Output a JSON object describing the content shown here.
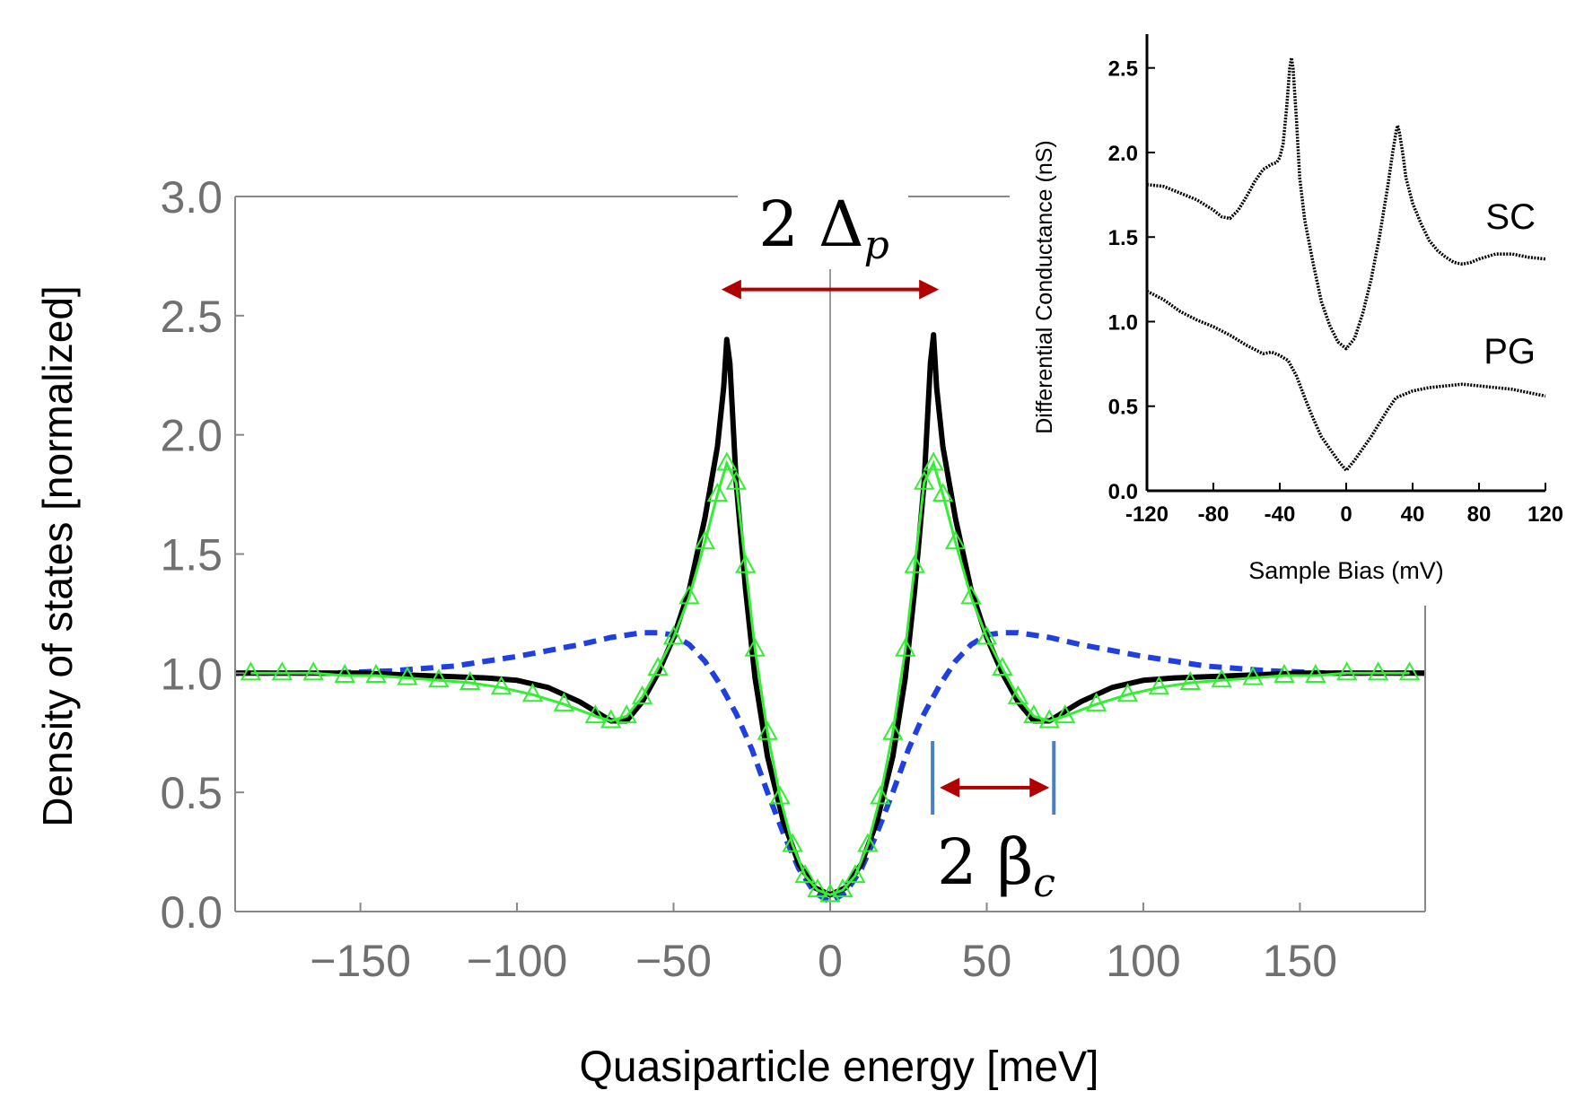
{
  "chart_data": [
    {
      "type": "line",
      "xlabel": "Quasiparticle energy [meV]",
      "ylabel": "Density of states [normalized]",
      "xlim": [
        -190,
        190
      ],
      "ylim": [
        0,
        3
      ],
      "xticks": [
        -150,
        -100,
        -50,
        0,
        50,
        100,
        150
      ],
      "xtick_labels": [
        "−150",
        "−100",
        "−50",
        "0",
        "50",
        "100",
        "150"
      ],
      "yticks": [
        0,
        0.5,
        1,
        1.5,
        2,
        2.5,
        3
      ],
      "ytick_labels": [
        "0.0",
        "0.5",
        "1.0",
        "1.5",
        "2.0",
        "2.5",
        "3.0"
      ],
      "grid": false,
      "colors": {
        "solid": "#000000",
        "dashed": "#1f3fe0",
        "triangles": "#33ee33",
        "arrows": "#b00000",
        "bars": "#4a7fc1",
        "axes": "#888888"
      },
      "series": [
        {
          "style": "solid-black",
          "x": [
            -190,
            -170,
            -150,
            -130,
            -110,
            -100,
            -90,
            -80,
            -75,
            -70,
            -65,
            -60,
            -55,
            -50,
            -45,
            -40,
            -36,
            -34,
            -33,
            -32,
            -30,
            -27,
            -24,
            -20,
            -15,
            -10,
            -5,
            0,
            5,
            10,
            15,
            20,
            24,
            27,
            30,
            32,
            33,
            34,
            36,
            40,
            45,
            50,
            55,
            60,
            65,
            70,
            75,
            80,
            90,
            100,
            110,
            130,
            150,
            170,
            190
          ],
          "y": [
            1.0,
            1.0,
            1.0,
            0.99,
            0.98,
            0.97,
            0.94,
            0.88,
            0.84,
            0.8,
            0.8,
            0.88,
            1.0,
            1.15,
            1.35,
            1.65,
            1.95,
            2.2,
            2.4,
            2.3,
            1.8,
            1.35,
            0.98,
            0.65,
            0.38,
            0.2,
            0.1,
            0.07,
            0.1,
            0.2,
            0.38,
            0.65,
            0.98,
            1.35,
            1.8,
            2.3,
            2.42,
            2.2,
            1.95,
            1.65,
            1.35,
            1.15,
            1.0,
            0.88,
            0.8,
            0.8,
            0.84,
            0.88,
            0.94,
            0.97,
            0.98,
            0.99,
            1.0,
            1.0,
            1.0
          ]
        },
        {
          "style": "dashed-blue",
          "x": [
            -190,
            -160,
            -140,
            -120,
            -100,
            -80,
            -70,
            -60,
            -55,
            -50,
            -45,
            -40,
            -35,
            -30,
            -25,
            -20,
            -15,
            -10,
            -5,
            0,
            5,
            10,
            15,
            20,
            25,
            30,
            35,
            40,
            45,
            50,
            55,
            60,
            70,
            80,
            100,
            120,
            140,
            160,
            190
          ],
          "y": [
            1.0,
            1.0,
            1.01,
            1.03,
            1.07,
            1.12,
            1.15,
            1.17,
            1.17,
            1.16,
            1.12,
            1.05,
            0.95,
            0.83,
            0.68,
            0.5,
            0.33,
            0.18,
            0.08,
            0.04,
            0.08,
            0.18,
            0.33,
            0.5,
            0.68,
            0.83,
            0.95,
            1.05,
            1.12,
            1.16,
            1.17,
            1.17,
            1.15,
            1.12,
            1.07,
            1.03,
            1.01,
            1.0,
            1.0
          ]
        },
        {
          "style": "green-triangles",
          "x": [
            -185,
            -175,
            -165,
            -155,
            -145,
            -135,
            -125,
            -115,
            -105,
            -95,
            -85,
            -75,
            -70,
            -65,
            -60,
            -55,
            -50,
            -45,
            -40,
            -36,
            -33,
            -30,
            -27,
            -24,
            -20,
            -16,
            -12,
            -8,
            -4,
            0,
            4,
            8,
            12,
            16,
            20,
            24,
            27,
            30,
            33,
            36,
            40,
            45,
            50,
            55,
            60,
            65,
            70,
            75,
            85,
            95,
            105,
            115,
            125,
            135,
            145,
            155,
            165,
            175,
            185
          ],
          "y": [
            1.0,
            1.0,
            1.0,
            0.99,
            0.99,
            0.98,
            0.97,
            0.96,
            0.94,
            0.91,
            0.87,
            0.82,
            0.8,
            0.82,
            0.9,
            1.02,
            1.15,
            1.32,
            1.55,
            1.75,
            1.88,
            1.8,
            1.45,
            1.1,
            0.75,
            0.48,
            0.28,
            0.15,
            0.09,
            0.07,
            0.09,
            0.15,
            0.28,
            0.48,
            0.75,
            1.1,
            1.45,
            1.8,
            1.88,
            1.75,
            1.55,
            1.32,
            1.15,
            1.02,
            0.9,
            0.82,
            0.8,
            0.82,
            0.87,
            0.91,
            0.94,
            0.96,
            0.97,
            0.98,
            0.99,
            0.99,
            1.0,
            1.0,
            1.0
          ]
        }
      ],
      "annotations": [
        {
          "name": "gap-arrow",
          "label": "2 Δ",
          "subscript": "p",
          "x_from": -33,
          "x_to": 33,
          "y": 2.61
        },
        {
          "name": "beta-arrow",
          "label": "2 β",
          "subscript": "c",
          "x_from": 35,
          "x_to": 70,
          "y": 0.52
        }
      ]
    },
    {
      "type": "line",
      "xlabel": "Sample Bias (mV)",
      "ylabel": "Differential Conductance (nS)",
      "xlim": [
        -120,
        120
      ],
      "ylim": [
        0,
        2.7
      ],
      "xticks": [
        -120,
        -80,
        -40,
        0,
        40,
        80,
        120
      ],
      "xtick_labels": [
        "-120",
        "-80",
        "-40",
        "0",
        "40",
        "80",
        "120"
      ],
      "yticks": [
        0,
        0.5,
        1,
        1.5,
        2,
        2.5
      ],
      "ytick_labels": [
        "0.0",
        "0.5",
        "1.0",
        "1.5",
        "2.0",
        "2.5"
      ],
      "series": [
        {
          "name": "SC",
          "x": [
            -120,
            -110,
            -100,
            -90,
            -80,
            -75,
            -70,
            -65,
            -60,
            -55,
            -50,
            -45,
            -42,
            -40,
            -38,
            -36,
            -34,
            -33,
            -32,
            -30,
            -28,
            -25,
            -20,
            -15,
            -10,
            -5,
            0,
            5,
            10,
            15,
            20,
            25,
            28,
            30,
            31,
            32,
            34,
            36,
            40,
            45,
            50,
            55,
            60,
            65,
            70,
            75,
            80,
            90,
            100,
            110,
            120
          ],
          "y": [
            1.81,
            1.8,
            1.76,
            1.72,
            1.66,
            1.62,
            1.61,
            1.66,
            1.74,
            1.83,
            1.9,
            1.93,
            1.94,
            1.97,
            2.05,
            2.25,
            2.5,
            2.56,
            2.5,
            2.2,
            1.85,
            1.6,
            1.35,
            1.12,
            0.98,
            0.88,
            0.84,
            0.9,
            1.05,
            1.25,
            1.5,
            1.8,
            2.0,
            2.12,
            2.16,
            2.12,
            2.0,
            1.85,
            1.7,
            1.58,
            1.48,
            1.42,
            1.38,
            1.35,
            1.34,
            1.35,
            1.37,
            1.4,
            1.4,
            1.38,
            1.37
          ]
        },
        {
          "name": "PG",
          "x": [
            -120,
            -110,
            -100,
            -90,
            -80,
            -70,
            -60,
            -50,
            -45,
            -40,
            -35,
            -30,
            -25,
            -20,
            -15,
            -10,
            -5,
            0,
            5,
            10,
            15,
            20,
            25,
            30,
            40,
            50,
            60,
            70,
            80,
            90,
            100,
            110,
            120
          ],
          "y": [
            1.18,
            1.13,
            1.06,
            1.01,
            0.97,
            0.92,
            0.86,
            0.81,
            0.82,
            0.8,
            0.77,
            0.68,
            0.55,
            0.43,
            0.32,
            0.25,
            0.18,
            0.12,
            0.18,
            0.25,
            0.32,
            0.4,
            0.48,
            0.55,
            0.59,
            0.61,
            0.62,
            0.63,
            0.62,
            0.61,
            0.6,
            0.58,
            0.56
          ]
        }
      ]
    }
  ]
}
